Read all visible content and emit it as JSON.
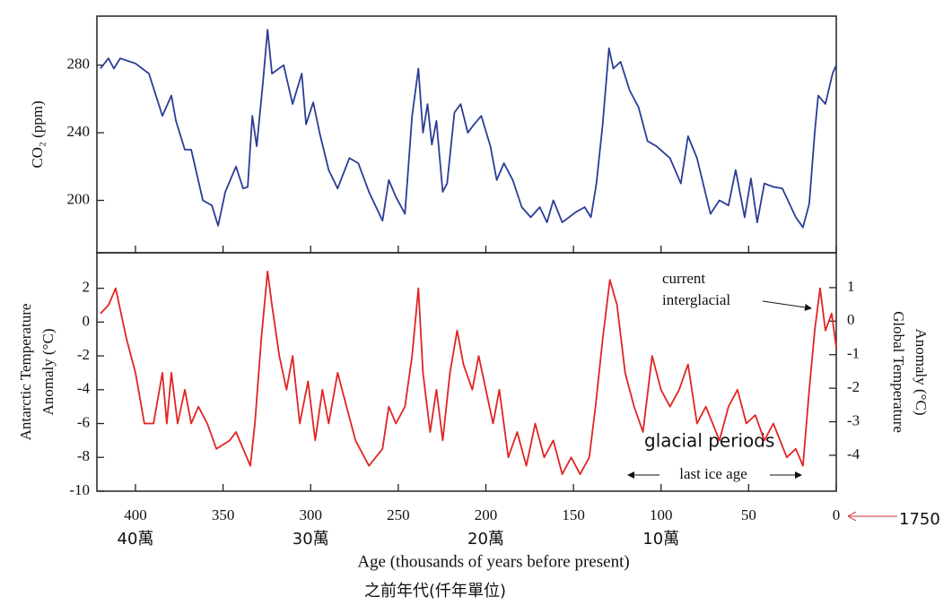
{
  "chart_data": [
    {
      "type": "line",
      "ylabel": "CO₂ (ppm)",
      "color": "#2b3d96",
      "xlim": [
        422,
        0
      ],
      "xticks": [
        400,
        350,
        300,
        250,
        200,
        150,
        100,
        50,
        0
      ],
      "ylim": [
        169,
        309
      ],
      "yticks": [
        200,
        240,
        280
      ],
      "x": [
        420.0,
        415.4,
        412.3,
        408.7,
        400.0,
        392.3,
        384.6,
        379.5,
        376.9,
        371.8,
        368.2,
        361.5,
        356.4,
        352.8,
        348.7,
        342.6,
        338.5,
        335.9,
        333.3,
        330.8,
        327.2,
        324.6,
        322.1,
        315.4,
        310.3,
        305.1,
        302.6,
        298.5,
        294.9,
        289.7,
        284.6,
        277.9,
        272.8,
        266.7,
        259.0,
        255.4,
        251.3,
        246.2,
        242.1,
        238.5,
        235.9,
        233.3,
        230.8,
        228.2,
        224.6,
        222.1,
        217.9,
        214.4,
        210.3,
        206.7,
        202.6,
        197.4,
        193.8,
        189.7,
        184.6,
        179.5,
        174.4,
        169.2,
        165.1,
        161.5,
        156.4,
        148.7,
        143.6,
        140.0,
        136.9,
        133.3,
        129.7,
        127.2,
        123.1,
        117.9,
        112.8,
        107.7,
        102.6,
        94.9,
        88.7,
        84.6,
        79.5,
        71.8,
        66.7,
        61.5,
        57.4,
        52.3,
        48.7,
        45.1,
        41.0,
        35.9,
        30.8,
        23.1,
        19.0,
        15.4,
        12.3,
        10.3,
        6.2,
        2.1,
        0
      ],
      "values": [
        278,
        284,
        278,
        284,
        281,
        275,
        250,
        262,
        247,
        230,
        230,
        200,
        197,
        185,
        205,
        220,
        207,
        208,
        250,
        232,
        270,
        301,
        275,
        280,
        257,
        275,
        245,
        258,
        240,
        218,
        207,
        225,
        222,
        205,
        188,
        212,
        202,
        192,
        250,
        278,
        240,
        257,
        233,
        247,
        205,
        210,
        252,
        257,
        240,
        245,
        250,
        232,
        212,
        222,
        212,
        196,
        190,
        196,
        187,
        200,
        187,
        193,
        196,
        190,
        210,
        245,
        290,
        278,
        282,
        265,
        255,
        235,
        232,
        225,
        210,
        238,
        225,
        192,
        200,
        197,
        218,
        190,
        213,
        187,
        210,
        208,
        207,
        190,
        184,
        198,
        240,
        262,
        257,
        275,
        280
      ]
    },
    {
      "type": "line",
      "ylabel": [
        "Antarctic Temperature",
        "Anomaly (°C)"
      ],
      "y2label": [
        "Global Temperature",
        "Anomaly (°C)"
      ],
      "xlabel": "Age (thousands of years before present)",
      "xlabel_zh": "之前年代(仟年單位)",
      "color": "#e02424",
      "xlim": [
        422,
        0
      ],
      "xticks": [
        400,
        350,
        300,
        250,
        200,
        150,
        100,
        50,
        0
      ],
      "zh_ticks": [
        {
          "value": 400,
          "label": "40萬"
        },
        {
          "value": 300,
          "label": "30萬"
        },
        {
          "value": 200,
          "label": "20萬"
        },
        {
          "value": 100,
          "label": "10萬"
        }
      ],
      "ylim": [
        -10,
        4.1
      ],
      "yticks": [
        -10,
        -8,
        -6,
        -4,
        -2,
        0,
        2
      ],
      "y2lim": [
        -5.07,
        2.04
      ],
      "y2ticks": [
        -4,
        -3,
        -2,
        -1,
        0,
        1
      ],
      "annotations": {
        "current_interglacial": [
          "current",
          "interglacial"
        ],
        "glacial_periods": "glacial periods",
        "last_ice_age": "last ice age",
        "marker_1750": "1750"
      },
      "x": [
        420.0,
        415.4,
        411.3,
        405.1,
        400.0,
        394.9,
        389.7,
        384.6,
        382.1,
        379.5,
        375.9,
        371.8,
        368.2,
        364.1,
        359.0,
        353.8,
        346.2,
        342.6,
        338.5,
        334.4,
        331.8,
        328.2,
        324.6,
        322.1,
        317.9,
        313.8,
        310.3,
        306.2,
        301.5,
        297.4,
        293.3,
        289.7,
        284.6,
        279.5,
        274.4,
        266.7,
        259.0,
        255.4,
        251.3,
        246.2,
        242.1,
        238.5,
        235.9,
        231.8,
        228.2,
        224.6,
        220.5,
        216.4,
        212.8,
        207.7,
        204.1,
        200.0,
        195.9,
        192.3,
        187.2,
        182.1,
        176.9,
        171.8,
        166.7,
        161.5,
        156.4,
        151.3,
        146.2,
        141.0,
        137.4,
        133.3,
        129.2,
        125.1,
        120.5,
        115.4,
        110.3,
        105.1,
        100.0,
        94.9,
        89.7,
        84.6,
        79.5,
        74.4,
        66.7,
        61.5,
        56.4,
        51.3,
        46.2,
        41.0,
        35.9,
        28.2,
        23.1,
        19.0,
        15.4,
        12.3,
        9.2,
        6.2,
        2.6,
        0
      ],
      "values": [
        0.5,
        1,
        2,
        -1,
        -3,
        -6,
        -6,
        -3,
        -6,
        -3,
        -6,
        -4,
        -6,
        -5,
        -6,
        -7.5,
        -7,
        -6.5,
        -7.5,
        -8.5,
        -6,
        -1,
        3,
        1,
        -2,
        -4,
        -2,
        -6,
        -3.5,
        -7,
        -4,
        -6,
        -3,
        -5,
        -7,
        -8.5,
        -7.5,
        -5,
        -6,
        -5,
        -2,
        2,
        -3,
        -6.5,
        -4,
        -7,
        -3,
        -0.5,
        -2.5,
        -4,
        -2,
        -4,
        -6,
        -4,
        -8,
        -6.5,
        -8.5,
        -6,
        -8,
        -7,
        -9,
        -8,
        -9,
        -8,
        -5,
        -1,
        2.5,
        1,
        -3,
        -5,
        -6.5,
        -2,
        -4,
        -5,
        -4,
        -2.5,
        -6,
        -5,
        -7,
        -5,
        -4,
        -6,
        -5.5,
        -7,
        -6,
        -8,
        -7.5,
        -8.5,
        -4,
        -0.5,
        2,
        -0.5,
        0.5,
        -1.5
      ]
    }
  ]
}
